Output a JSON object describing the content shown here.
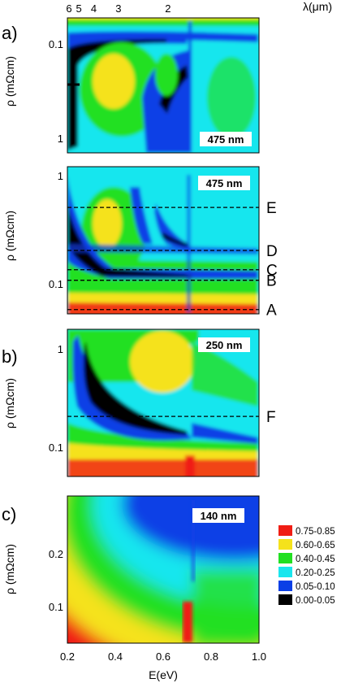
{
  "colors": {
    "bin_0": "#000000",
    "bin_1": "#0a3fe6",
    "bin_2": "#19e6ee",
    "bin_3": "#22e022",
    "bin_4": "#f5e21b",
    "bin_5": "#f01d14"
  },
  "chart_data": {
    "type": "heatmap",
    "xlabel": "E(eV)",
    "x_ticks": [
      "0.2",
      "0.4",
      "0.6",
      "0.8",
      "1.0"
    ],
    "xlim": [
      0.2,
      1.0
    ],
    "top_axis": {
      "label": "λ(μm)",
      "ticks": [
        {
          "label": "6",
          "energy": 0.2066
        },
        {
          "label": "5",
          "energy": 0.248
        },
        {
          "label": "4",
          "energy": 0.31
        },
        {
          "label": "3",
          "energy": 0.413
        },
        {
          "label": "2",
          "energy": 0.62
        }
      ]
    },
    "legend": {
      "placement": "bottom-right",
      "entries": [
        "0.75-0.85",
        "0.60-0.65",
        "0.40-0.45",
        "0.20-0.25",
        "0.05-0.10",
        "0.00-0.05"
      ]
    },
    "panels": [
      {
        "letter": "a)",
        "thickness": "475 nm",
        "ylabel": "ρ (mΩcm)",
        "y_scale": "log",
        "ylim": [
          1.3,
          0.06
        ],
        "y_ticks": [
          "0.1",
          "1"
        ],
        "annotations": []
      },
      {
        "letter": "",
        "thickness": "475 nm",
        "ylabel": "ρ (mΩcm)",
        "y_scale": "log",
        "ylim": [
          1.1,
          0.055
        ],
        "y_ticks": [
          "1",
          "0.1"
        ],
        "annotations": [
          {
            "label": "E",
            "rho": 0.48
          },
          {
            "label": "D",
            "rho": 0.2
          },
          {
            "label": "C",
            "rho": 0.135
          },
          {
            "label": "B",
            "rho": 0.109
          },
          {
            "label": "A",
            "rho": 0.06
          }
        ]
      },
      {
        "letter": "b)",
        "thickness": "250 nm",
        "ylabel": "ρ (mΩcm)",
        "y_scale": "log",
        "ylim": [
          1.3,
          0.055
        ],
        "y_ticks": [
          "1",
          "0.1"
        ],
        "annotations": [
          {
            "label": "F",
            "rho": 0.2
          }
        ]
      },
      {
        "letter": "c)",
        "thickness": "140 nm",
        "ylabel": "ρ (mΩcm)",
        "y_scale": "linear",
        "ylim": [
          0.41,
          0.04
        ],
        "y_ticks": [
          "0.2",
          "0.1"
        ],
        "annotations": []
      }
    ]
  }
}
